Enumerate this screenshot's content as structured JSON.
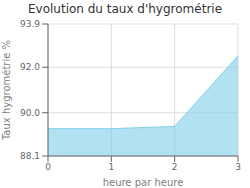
{
  "chart_data": {
    "type": "area",
    "title": "Evolution du taux d'hygrométrie",
    "xlabel": "heure par heure",
    "ylabel": "Taux hygrométrie %",
    "x": [
      0,
      1,
      2,
      3
    ],
    "values": [
      89.3,
      89.3,
      89.4,
      92.5
    ],
    "xlim": [
      0,
      3
    ],
    "ylim": [
      88.1,
      93.9
    ],
    "xticks": [
      0,
      1,
      2,
      3
    ],
    "yticks": [
      88.1,
      {
        "value": 90.0,
        "label": "90.0"
      },
      {
        "value": 92.0,
        "label": "92.0"
      },
      93.9
    ],
    "color": "#7ecfe8",
    "grid": true
  }
}
